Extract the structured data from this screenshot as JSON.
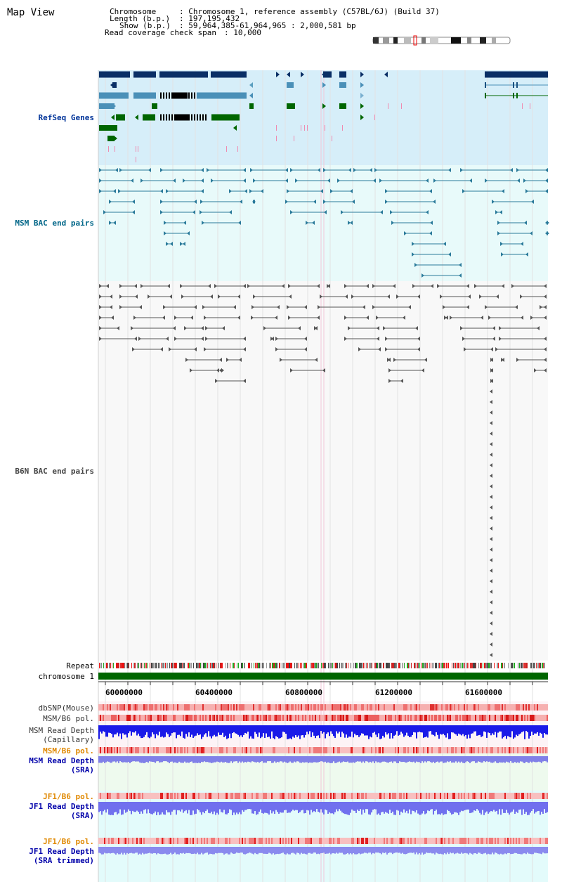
{
  "page": {
    "title": "Map View"
  },
  "info": {
    "chromosome_key": "Chromosome",
    "chromosome_val": ": Chromosome 1, reference assembly (C57BL/6J) (Build 37)",
    "length_key": "Length (b.p.)",
    "length_val": ": 197,195,432",
    "show_key": "Show (b.p.)",
    "show_val": ": 59,964,385-61,964,965 : 2,000,581 bp",
    "coverage_key": "Read coverage check span",
    "coverage_val": ": 10,000"
  },
  "tracks": {
    "refseq": {
      "label": "RefSeq Genes",
      "color": "#003399",
      "bg": "#d6eef9"
    },
    "msm_bac": {
      "label": "MSM BAC end pairs",
      "color": "#006688",
      "bg": "#e8fafa"
    },
    "b6n_bac": {
      "label": "B6N BAC end pairs",
      "color": "#444444",
      "bg": "#f7f7f7"
    },
    "repeat": {
      "label": "Repeat"
    },
    "chromosome": {
      "label": "chromosome 1",
      "color": "#006600"
    },
    "dbsnp": {
      "label": "dbSNP(Mouse)"
    },
    "msm_b6_pol": {
      "label": "MSM/B6 pol."
    },
    "msm_depth_cap": {
      "label1": "MSM Read Depth",
      "label2": "(Capillary)"
    },
    "msm_b6_pol_sra": {
      "label": "MSM/B6 pol.",
      "color": "#e08800"
    },
    "msm_depth_sra": {
      "label1": "MSM Read Depth",
      "label2": "(SRA)",
      "color": "#0000aa"
    },
    "jf1_b6_pol": {
      "label": "JF1/B6 pol.",
      "color": "#e08800"
    },
    "jf1_depth_sra": {
      "label1": "JF1 Read Depth",
      "label2": "(SRA)",
      "color": "#0000aa"
    },
    "jf1_b6_pol_trim": {
      "label": "JF1/B6 pol.",
      "color": "#e08800"
    },
    "jf1_depth_trim": {
      "label1": "JF1 Read Depth",
      "label2": "(SRA trimmed)",
      "color": "#0000aa"
    }
  },
  "axis": {
    "ticks": [
      "60000000",
      "60400000",
      "60800000",
      "61200000",
      "61600000"
    ]
  }
}
